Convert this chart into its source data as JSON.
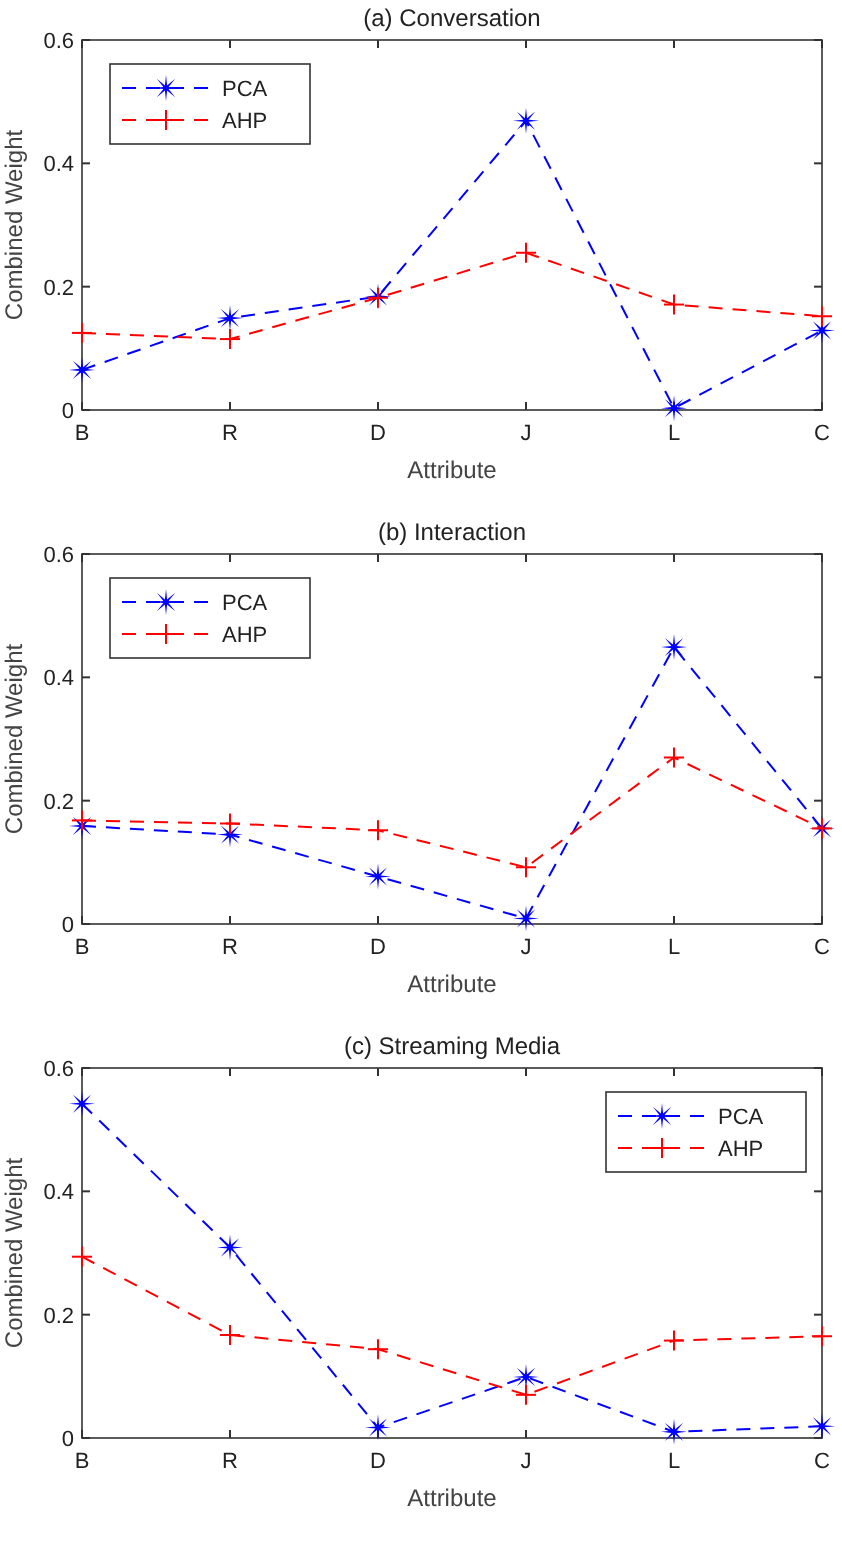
{
  "chart_data": [
    {
      "type": "line",
      "title": "(a) Conversation",
      "xlabel": "Attribute",
      "ylabel": "Combined Weight",
      "categories": [
        "B",
        "R",
        "D",
        "J",
        "L",
        "C"
      ],
      "ylim": [
        0,
        0.6
      ],
      "yticks": [
        0,
        0.2,
        0.4,
        0.6
      ],
      "legend": "top left",
      "line_style": "dashed",
      "grid": false,
      "series": [
        {
          "name": "PCA",
          "color": "#0000ff",
          "marker": "star",
          "values": [
            0.065,
            0.149,
            0.184,
            0.469,
            0.003,
            0.129
          ]
        },
        {
          "name": "AHP",
          "color": "#ff0000",
          "marker": "cross",
          "values": [
            0.125,
            0.115,
            0.182,
            0.255,
            0.171,
            0.152
          ]
        }
      ]
    },
    {
      "type": "line",
      "title": "(b) Interaction",
      "xlabel": "Attribute",
      "ylabel": "Combined Weight",
      "categories": [
        "B",
        "R",
        "D",
        "J",
        "L",
        "C"
      ],
      "ylim": [
        0,
        0.6
      ],
      "yticks": [
        0,
        0.2,
        0.4,
        0.6
      ],
      "legend": "top left",
      "line_style": "dashed",
      "grid": false,
      "series": [
        {
          "name": "PCA",
          "color": "#0000ff",
          "marker": "star",
          "values": [
            0.159,
            0.145,
            0.077,
            0.009,
            0.449,
            0.155
          ]
        },
        {
          "name": "AHP",
          "color": "#ff0000",
          "marker": "cross",
          "values": [
            0.168,
            0.163,
            0.152,
            0.092,
            0.27,
            0.155
          ]
        }
      ]
    },
    {
      "type": "line",
      "title": "(c) Streaming Media",
      "xlabel": "Attribute",
      "ylabel": "Combined Weight",
      "categories": [
        "B",
        "R",
        "D",
        "J",
        "L",
        "C"
      ],
      "ylim": [
        0,
        0.6
      ],
      "yticks": [
        0,
        0.2,
        0.4,
        0.6
      ],
      "legend": "top right",
      "line_style": "dashed",
      "grid": false,
      "series": [
        {
          "name": "PCA",
          "color": "#0000ff",
          "marker": "star",
          "values": [
            0.542,
            0.309,
            0.017,
            0.099,
            0.01,
            0.019
          ]
        },
        {
          "name": "AHP",
          "color": "#ff0000",
          "marker": "cross",
          "values": [
            0.294,
            0.167,
            0.144,
            0.07,
            0.158,
            0.165
          ]
        }
      ]
    }
  ]
}
